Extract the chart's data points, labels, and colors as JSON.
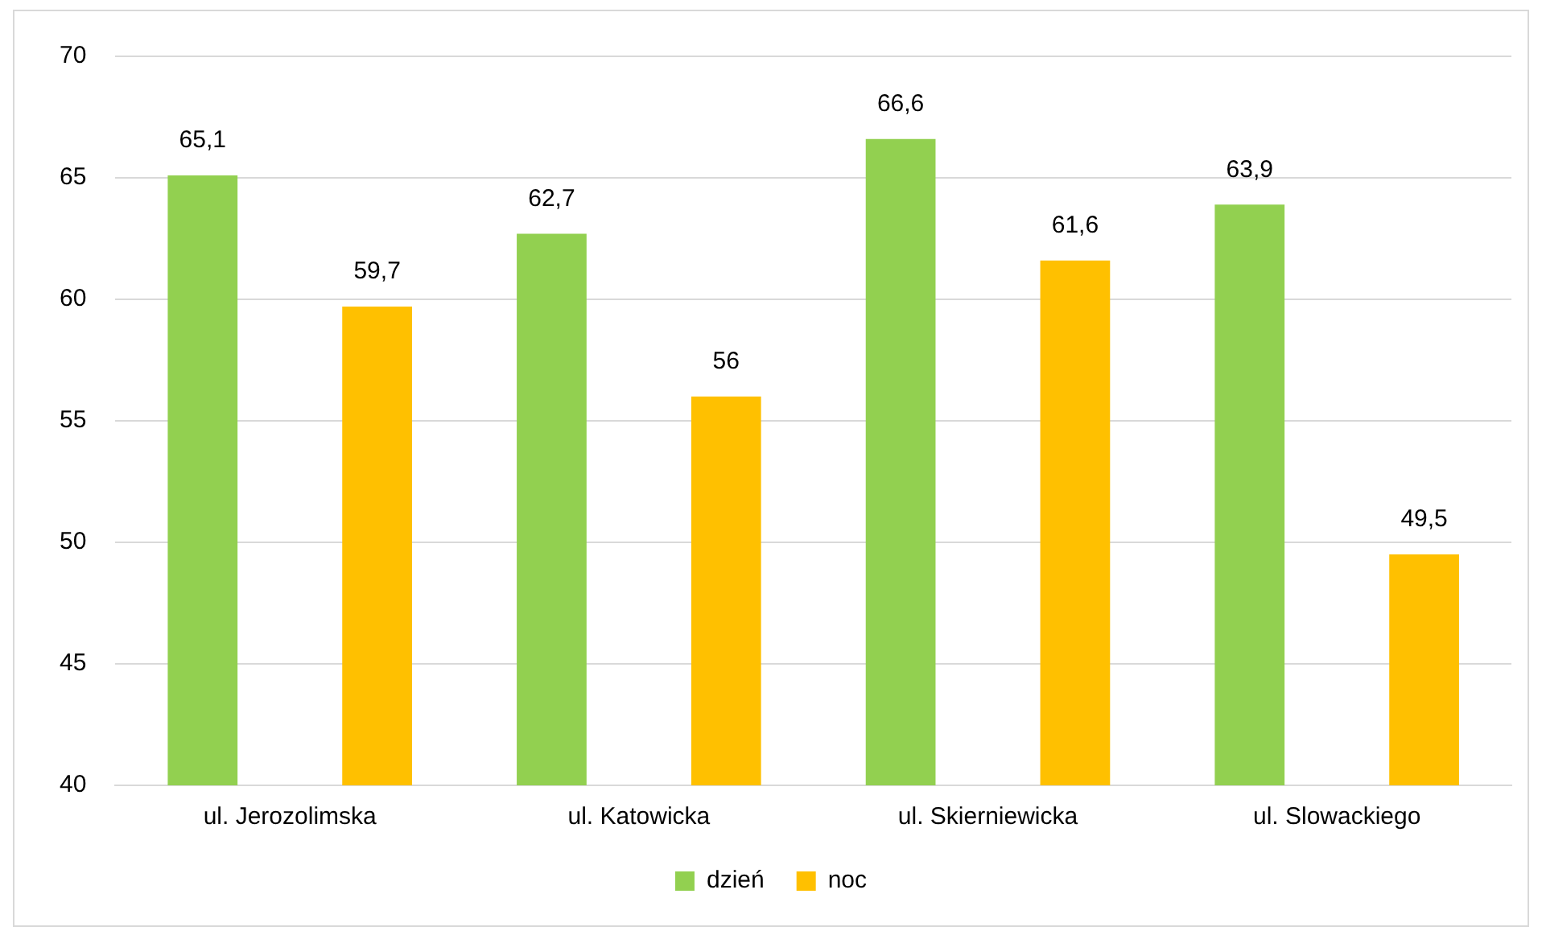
{
  "chart_data": {
    "type": "bar",
    "categories": [
      "ul. Jerozolimska",
      "ul. Katowicka",
      "ul. Skierniewicka",
      "ul. Slowackiego"
    ],
    "series": [
      {
        "name": "dzień",
        "color": "#92d050",
        "values": [
          65.1,
          62.7,
          66.6,
          63.9
        ],
        "value_labels": [
          "65,1",
          "62,7",
          "66,6",
          "63,9"
        ]
      },
      {
        "name": "noc",
        "color": "#ffc000",
        "values": [
          59.7,
          56,
          61.6,
          49.5
        ],
        "value_labels": [
          "59,7",
          "56",
          "61,6",
          "49,5"
        ]
      }
    ],
    "ylim": [
      40,
      70
    ],
    "yticks": [
      40,
      45,
      50,
      55,
      60,
      65,
      70
    ],
    "grid": "y",
    "legend": "bottom"
  }
}
